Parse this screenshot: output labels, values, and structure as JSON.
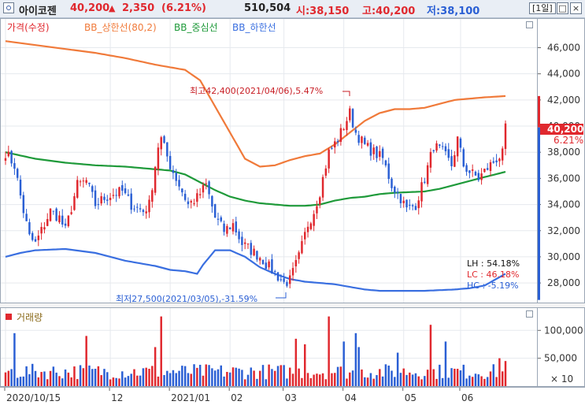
{
  "header": {
    "name": "아이코젠",
    "price": "40,200",
    "change_arrow": "▲",
    "change": "2,350",
    "change_pct": "(6.21%)",
    "volume": "510,504",
    "open": "시:38,150",
    "high": "고:40,200",
    "low": "저:38,100",
    "period": "[1일]"
  },
  "legend": {
    "price": "가격(수정)",
    "bb_upper": "BB_상한선(80,2)",
    "bb_mid": "BB_중심선",
    "bb_lower": "BB_하한선",
    "volume": "거래량"
  },
  "annotations": {
    "high": "최고42,400(2021/04/06),5.47%",
    "low": "최저27,500(2021/03/05),-31.59%",
    "lh": "LH : 54.18%",
    "lc": "LC : 46.18%",
    "hc": "HC : -5.19%"
  },
  "price_tag": {
    "price": "40,200",
    "pct": "6.21%"
  },
  "volume_unit": "× 10",
  "colors": {
    "up": "#e0282e",
    "down": "#2a5fd4",
    "bb_upper": "#f07a3a",
    "bb_mid": "#1f9a3a",
    "bb_lower": "#3a6fe0",
    "axis_text": "#333333",
    "header_up": "#e0282e",
    "header_low": "#2a5fd4"
  },
  "chart_data": {
    "type": "candlestick",
    "title": "",
    "ylabel": "",
    "xlabel": "",
    "ylim": [
      26500,
      48200
    ],
    "y_ticks": [
      28000,
      30000,
      32000,
      34000,
      36000,
      38000,
      40000,
      42000,
      44000,
      46000
    ],
    "x_tick_labels": [
      "2020/10/15",
      "12",
      "2021/01",
      "02",
      "03",
      "04",
      "05",
      "06"
    ],
    "x_tick_index": [
      0,
      35,
      55,
      75,
      93,
      113,
      133,
      152
    ],
    "volume_ylim": [
      0,
      140000
    ],
    "volume_ticks": [
      50000,
      100000
    ],
    "volume_tick_labels": [
      "50,000",
      "100,000"
    ],
    "n_bars": 168,
    "close_anchors": [
      [
        0,
        38000
      ],
      [
        3,
        37000
      ],
      [
        6,
        33500
      ],
      [
        8,
        31500
      ],
      [
        10,
        31000
      ],
      [
        13,
        32500
      ],
      [
        15,
        33500
      ],
      [
        18,
        33000
      ],
      [
        20,
        32000
      ],
      [
        24,
        35500
      ],
      [
        27,
        35800
      ],
      [
        30,
        34000
      ],
      [
        33,
        34500
      ],
      [
        36,
        34800
      ],
      [
        39,
        35000
      ],
      [
        42,
        34000
      ],
      [
        46,
        33500
      ],
      [
        48,
        34000
      ],
      [
        51,
        38500
      ],
      [
        52,
        39000
      ],
      [
        55,
        37000
      ],
      [
        58,
        35500
      ],
      [
        61,
        34000
      ],
      [
        64,
        34500
      ],
      [
        67,
        35500
      ],
      [
        70,
        33000
      ],
      [
        73,
        32000
      ],
      [
        76,
        32500
      ],
      [
        79,
        31000
      ],
      [
        82,
        30500
      ],
      [
        85,
        30000
      ],
      [
        88,
        29200
      ],
      [
        91,
        28500
      ],
      [
        93,
        28000
      ],
      [
        95,
        28200
      ],
      [
        98,
        30000
      ],
      [
        101,
        32500
      ],
      [
        103,
        33500
      ],
      [
        105,
        35000
      ],
      [
        108,
        38000
      ],
      [
        111,
        39000
      ],
      [
        113,
        40000
      ],
      [
        115,
        41000
      ],
      [
        117,
        39500
      ],
      [
        120,
        38500
      ],
      [
        123,
        38000
      ],
      [
        126,
        37500
      ],
      [
        129,
        35500
      ],
      [
        132,
        34500
      ],
      [
        134,
        33600
      ],
      [
        137,
        34000
      ],
      [
        140,
        36000
      ],
      [
        143,
        38500
      ],
      [
        146,
        38000
      ],
      [
        149,
        37000
      ],
      [
        151,
        39000
      ],
      [
        153,
        37000
      ],
      [
        155,
        36500
      ],
      [
        158,
        36000
      ],
      [
        161,
        36800
      ],
      [
        164,
        37500
      ],
      [
        166,
        37850
      ],
      [
        167,
        40200
      ]
    ],
    "bb_upper_anchors": [
      [
        0,
        46500
      ],
      [
        10,
        46200
      ],
      [
        20,
        45900
      ],
      [
        30,
        45600
      ],
      [
        40,
        45200
      ],
      [
        50,
        44700
      ],
      [
        60,
        44300
      ],
      [
        65,
        43500
      ],
      [
        70,
        41500
      ],
      [
        75,
        39500
      ],
      [
        80,
        37500
      ],
      [
        85,
        36900
      ],
      [
        90,
        37000
      ],
      [
        95,
        37400
      ],
      [
        100,
        37700
      ],
      [
        105,
        37900
      ],
      [
        110,
        38600
      ],
      [
        115,
        39500
      ],
      [
        120,
        40400
      ],
      [
        125,
        41000
      ],
      [
        130,
        41300
      ],
      [
        135,
        41300
      ],
      [
        140,
        41400
      ],
      [
        145,
        41700
      ],
      [
        150,
        42000
      ],
      [
        155,
        42100
      ],
      [
        160,
        42200
      ],
      [
        167,
        42300
      ]
    ],
    "bb_mid_anchors": [
      [
        0,
        38000
      ],
      [
        10,
        37500
      ],
      [
        20,
        37200
      ],
      [
        30,
        37000
      ],
      [
        40,
        36900
      ],
      [
        50,
        36700
      ],
      [
        55,
        36600
      ],
      [
        60,
        36300
      ],
      [
        65,
        35700
      ],
      [
        70,
        35100
      ],
      [
        75,
        34600
      ],
      [
        80,
        34300
      ],
      [
        85,
        34100
      ],
      [
        90,
        34000
      ],
      [
        95,
        33900
      ],
      [
        100,
        33900
      ],
      [
        105,
        34000
      ],
      [
        110,
        34300
      ],
      [
        115,
        34500
      ],
      [
        120,
        34600
      ],
      [
        125,
        34800
      ],
      [
        130,
        34900
      ],
      [
        135,
        34950
      ],
      [
        140,
        35000
      ],
      [
        145,
        35200
      ],
      [
        150,
        35500
      ],
      [
        155,
        35800
      ],
      [
        160,
        36100
      ],
      [
        167,
        36500
      ]
    ],
    "bb_lower_anchors": [
      [
        0,
        30000
      ],
      [
        5,
        30300
      ],
      [
        10,
        30500
      ],
      [
        20,
        30600
      ],
      [
        30,
        30300
      ],
      [
        40,
        29700
      ],
      [
        50,
        29300
      ],
      [
        55,
        29000
      ],
      [
        60,
        28900
      ],
      [
        64,
        28700
      ],
      [
        66,
        29400
      ],
      [
        70,
        30500
      ],
      [
        75,
        30500
      ],
      [
        80,
        30000
      ],
      [
        85,
        29200
      ],
      [
        90,
        28700
      ],
      [
        95,
        28300
      ],
      [
        100,
        28100
      ],
      [
        105,
        28000
      ],
      [
        110,
        27900
      ],
      [
        115,
        27700
      ],
      [
        120,
        27500
      ],
      [
        125,
        27400
      ],
      [
        130,
        27400
      ],
      [
        135,
        27400
      ],
      [
        140,
        27400
      ],
      [
        145,
        27450
      ],
      [
        150,
        27500
      ],
      [
        155,
        27600
      ],
      [
        160,
        27800
      ],
      [
        167,
        28700
      ]
    ],
    "volume_spikes": [
      [
        3,
        95000
      ],
      [
        27,
        90000
      ],
      [
        50,
        70000
      ],
      [
        52,
        125000
      ],
      [
        97,
        85000
      ],
      [
        100,
        75000
      ],
      [
        108,
        125000
      ],
      [
        113,
        80000
      ],
      [
        117,
        95000
      ],
      [
        118,
        70000
      ],
      [
        131,
        60000
      ],
      [
        142,
        110000
      ],
      [
        147,
        80000
      ],
      [
        165,
        50000
      ],
      [
        167,
        45000
      ]
    ],
    "series": [
      {
        "name": "가격(수정)"
      },
      {
        "name": "BB_상한선(80,2)"
      },
      {
        "name": "BB_중심선"
      },
      {
        "name": "BB_하한선"
      },
      {
        "name": "거래량"
      }
    ]
  }
}
